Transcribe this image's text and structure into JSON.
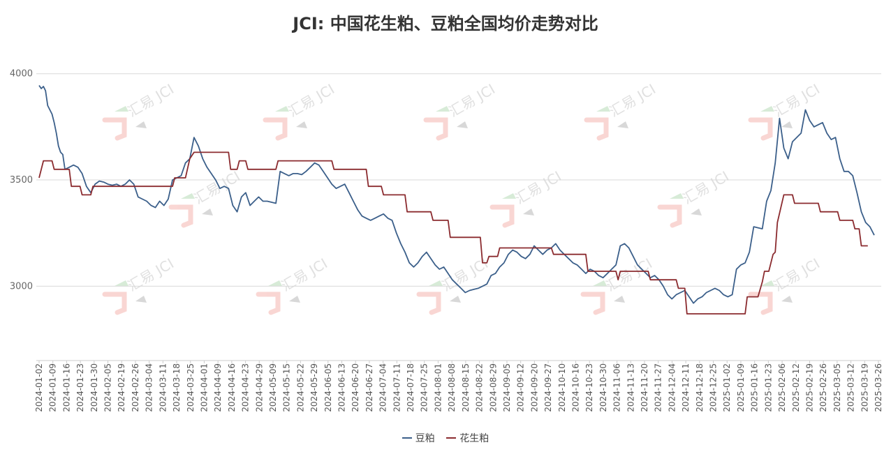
{
  "chart_data": {
    "type": "line",
    "title": "JCI: 中国花生粕、豆粕全国均价走势对比",
    "xlabel": "",
    "ylabel": "",
    "ylim": [
      2650,
      4150
    ],
    "yticks": [
      3000,
      3500,
      4000
    ],
    "grid": true,
    "legend_position": "bottom-center",
    "watermark": "汇易 JCI",
    "x_tick_labels": [
      "2024-01-02",
      "2024-01-09",
      "2024-01-16",
      "2024-01-23",
      "2024-01-30",
      "2024-02-05",
      "2024-02-19",
      "2024-02-26",
      "2024-03-04",
      "2024-03-11",
      "2024-03-18",
      "2024-03-25",
      "2024-04-01",
      "2024-04-09",
      "2024-04-16",
      "2024-04-23",
      "2024-04-29",
      "2024-05-09",
      "2024-05-15",
      "2024-05-22",
      "2024-05-29",
      "2024-06-05",
      "2024-06-13",
      "2024-06-20",
      "2024-06-27",
      "2024-07-04",
      "2024-07-11",
      "2024-07-18",
      "2024-07-25",
      "2024-08-01",
      "2024-08-08",
      "2024-08-15",
      "2024-08-22",
      "2024-08-29",
      "2024-09-05",
      "2024-09-12",
      "2024-09-20",
      "2024-09-27",
      "2024-10-10",
      "2024-10-16",
      "2024-10-23",
      "2024-10-30",
      "2024-11-06",
      "2024-11-13",
      "2024-11-20",
      "2024-11-27",
      "2024-12-04",
      "2024-12-11",
      "2024-12-18",
      "2024-12-25",
      "2025-01-02",
      "2025-01-09",
      "2025-01-16",
      "2025-01-23",
      "2025-02-06",
      "2025-02-12",
      "2025-02-19",
      "2025-02-26",
      "2025-03-05",
      "2025-03-12",
      "2025-03-19",
      "2025-03-26"
    ],
    "series": [
      {
        "name": "豆粕",
        "color": "#3b5f8a",
        "points": [
          [
            0,
            3945
          ],
          [
            1,
            3930
          ],
          [
            2,
            3940
          ],
          [
            3,
            3920
          ],
          [
            4,
            3850
          ],
          [
            5,
            3830
          ],
          [
            6,
            3810
          ],
          [
            7,
            3770
          ],
          [
            8,
            3720
          ],
          [
            9,
            3660
          ],
          [
            10,
            3630
          ],
          [
            11,
            3620
          ],
          [
            12,
            3550
          ],
          [
            14,
            3560
          ],
          [
            16,
            3570
          ],
          [
            18,
            3560
          ],
          [
            20,
            3530
          ],
          [
            22,
            3470
          ],
          [
            24,
            3440
          ],
          [
            26,
            3480
          ],
          [
            28,
            3495
          ],
          [
            30,
            3490
          ],
          [
            32,
            3480
          ],
          [
            34,
            3475
          ],
          [
            36,
            3480
          ],
          [
            38,
            3470
          ],
          [
            40,
            3480
          ],
          [
            42,
            3500
          ],
          [
            44,
            3480
          ],
          [
            46,
            3420
          ],
          [
            48,
            3410
          ],
          [
            50,
            3400
          ],
          [
            52,
            3380
          ],
          [
            54,
            3370
          ],
          [
            56,
            3400
          ],
          [
            58,
            3380
          ],
          [
            60,
            3410
          ],
          [
            62,
            3500
          ],
          [
            64,
            3510
          ],
          [
            66,
            3520
          ],
          [
            68,
            3580
          ],
          [
            70,
            3600
          ],
          [
            72,
            3700
          ],
          [
            74,
            3660
          ],
          [
            76,
            3600
          ],
          [
            78,
            3560
          ],
          [
            80,
            3530
          ],
          [
            82,
            3500
          ],
          [
            84,
            3460
          ],
          [
            86,
            3470
          ],
          [
            88,
            3460
          ],
          [
            90,
            3380
          ],
          [
            92,
            3350
          ],
          [
            94,
            3420
          ],
          [
            96,
            3440
          ],
          [
            98,
            3380
          ],
          [
            100,
            3400
          ],
          [
            102,
            3420
          ],
          [
            104,
            3400
          ],
          [
            106,
            3400
          ],
          [
            108,
            3395
          ],
          [
            110,
            3390
          ],
          [
            112,
            3540
          ],
          [
            114,
            3530
          ],
          [
            116,
            3520
          ],
          [
            118,
            3530
          ],
          [
            120,
            3530
          ],
          [
            122,
            3525
          ],
          [
            124,
            3540
          ],
          [
            126,
            3560
          ],
          [
            128,
            3580
          ],
          [
            130,
            3570
          ],
          [
            132,
            3540
          ],
          [
            134,
            3510
          ],
          [
            136,
            3480
          ],
          [
            138,
            3460
          ],
          [
            140,
            3470
          ],
          [
            142,
            3480
          ],
          [
            144,
            3440
          ],
          [
            146,
            3400
          ],
          [
            148,
            3360
          ],
          [
            150,
            3330
          ],
          [
            152,
            3320
          ],
          [
            154,
            3310
          ],
          [
            156,
            3320
          ],
          [
            158,
            3330
          ],
          [
            160,
            3340
          ],
          [
            162,
            3320
          ],
          [
            164,
            3310
          ],
          [
            166,
            3250
          ],
          [
            168,
            3200
          ],
          [
            170,
            3160
          ],
          [
            172,
            3110
          ],
          [
            174,
            3090
          ],
          [
            176,
            3110
          ],
          [
            178,
            3140
          ],
          [
            180,
            3160
          ],
          [
            182,
            3130
          ],
          [
            184,
            3100
          ],
          [
            186,
            3080
          ],
          [
            188,
            3090
          ],
          [
            190,
            3060
          ],
          [
            192,
            3030
          ],
          [
            194,
            3010
          ],
          [
            196,
            2990
          ],
          [
            198,
            2970
          ],
          [
            200,
            2980
          ],
          [
            202,
            2985
          ],
          [
            204,
            2990
          ],
          [
            206,
            3000
          ],
          [
            208,
            3010
          ],
          [
            210,
            3050
          ],
          [
            212,
            3060
          ],
          [
            214,
            3090
          ],
          [
            216,
            3110
          ],
          [
            218,
            3150
          ],
          [
            220,
            3170
          ],
          [
            222,
            3160
          ],
          [
            224,
            3140
          ],
          [
            226,
            3130
          ],
          [
            228,
            3150
          ],
          [
            230,
            3190
          ],
          [
            232,
            3170
          ],
          [
            234,
            3150
          ],
          [
            236,
            3170
          ],
          [
            238,
            3180
          ],
          [
            240,
            3200
          ],
          [
            242,
            3170
          ],
          [
            244,
            3150
          ],
          [
            246,
            3130
          ],
          [
            248,
            3110
          ],
          [
            250,
            3100
          ],
          [
            252,
            3080
          ],
          [
            254,
            3060
          ],
          [
            256,
            3080
          ],
          [
            258,
            3070
          ],
          [
            260,
            3050
          ],
          [
            262,
            3040
          ],
          [
            264,
            3060
          ],
          [
            266,
            3080
          ],
          [
            268,
            3100
          ],
          [
            270,
            3190
          ],
          [
            272,
            3200
          ],
          [
            274,
            3180
          ],
          [
            276,
            3140
          ],
          [
            278,
            3100
          ],
          [
            280,
            3080
          ],
          [
            282,
            3060
          ],
          [
            284,
            3040
          ],
          [
            286,
            3050
          ],
          [
            288,
            3030
          ],
          [
            290,
            3000
          ],
          [
            292,
            2960
          ],
          [
            294,
            2940
          ],
          [
            296,
            2960
          ],
          [
            298,
            2970
          ],
          [
            300,
            2980
          ],
          [
            302,
            2950
          ],
          [
            304,
            2920
          ],
          [
            306,
            2940
          ],
          [
            308,
            2950
          ],
          [
            310,
            2970
          ],
          [
            312,
            2980
          ],
          [
            314,
            2990
          ],
          [
            316,
            2980
          ],
          [
            318,
            2960
          ],
          [
            320,
            2950
          ],
          [
            322,
            2960
          ],
          [
            324,
            3080
          ],
          [
            326,
            3100
          ],
          [
            328,
            3110
          ],
          [
            330,
            3160
          ],
          [
            332,
            3280
          ],
          [
            334,
            3275
          ],
          [
            336,
            3270
          ],
          [
            338,
            3400
          ],
          [
            340,
            3450
          ],
          [
            342,
            3580
          ],
          [
            344,
            3790
          ],
          [
            346,
            3650
          ],
          [
            348,
            3600
          ],
          [
            350,
            3680
          ],
          [
            352,
            3700
          ],
          [
            354,
            3720
          ],
          [
            356,
            3830
          ],
          [
            358,
            3780
          ],
          [
            360,
            3750
          ],
          [
            362,
            3760
          ],
          [
            364,
            3770
          ],
          [
            366,
            3720
          ],
          [
            368,
            3690
          ],
          [
            370,
            3700
          ],
          [
            372,
            3600
          ],
          [
            374,
            3540
          ],
          [
            376,
            3540
          ],
          [
            378,
            3520
          ],
          [
            380,
            3440
          ],
          [
            382,
            3350
          ],
          [
            384,
            3300
          ],
          [
            386,
            3280
          ],
          [
            388,
            3240
          ]
        ]
      },
      {
        "name": "花生粕",
        "color": "#8b2b2f",
        "points": [
          [
            0,
            3510
          ],
          [
            2,
            3590
          ],
          [
            6,
            3590
          ],
          [
            7,
            3550
          ],
          [
            14,
            3550
          ],
          [
            15,
            3470
          ],
          [
            19,
            3470
          ],
          [
            20,
            3430
          ],
          [
            24,
            3430
          ],
          [
            25,
            3470
          ],
          [
            62,
            3470
          ],
          [
            63,
            3510
          ],
          [
            68,
            3510
          ],
          [
            70,
            3600
          ],
          [
            72,
            3630
          ],
          [
            88,
            3630
          ],
          [
            89,
            3550
          ],
          [
            92,
            3550
          ],
          [
            93,
            3590
          ],
          [
            96,
            3590
          ],
          [
            97,
            3550
          ],
          [
            110,
            3550
          ],
          [
            111,
            3590
          ],
          [
            136,
            3590
          ],
          [
            137,
            3550
          ],
          [
            152,
            3550
          ],
          [
            153,
            3470
          ],
          [
            159,
            3470
          ],
          [
            160,
            3430
          ],
          [
            170,
            3430
          ],
          [
            171,
            3350
          ],
          [
            182,
            3350
          ],
          [
            183,
            3310
          ],
          [
            190,
            3310
          ],
          [
            191,
            3230
          ],
          [
            205,
            3230
          ],
          [
            206,
            3110
          ],
          [
            208,
            3110
          ],
          [
            209,
            3140
          ],
          [
            213,
            3140
          ],
          [
            214,
            3180
          ],
          [
            238,
            3180
          ],
          [
            239,
            3150
          ],
          [
            254,
            3150
          ],
          [
            255,
            3070
          ],
          [
            268,
            3070
          ],
          [
            269,
            3030
          ],
          [
            270,
            3070
          ],
          [
            283,
            3070
          ],
          [
            284,
            3030
          ],
          [
            296,
            3030
          ],
          [
            297,
            2990
          ],
          [
            300,
            2990
          ],
          [
            301,
            2870
          ],
          [
            328,
            2870
          ],
          [
            329,
            2950
          ],
          [
            334,
            2950
          ],
          [
            336,
            3020
          ],
          [
            337,
            3070
          ],
          [
            339,
            3070
          ],
          [
            341,
            3150
          ],
          [
            342,
            3160
          ],
          [
            343,
            3300
          ],
          [
            346,
            3430
          ],
          [
            350,
            3430
          ],
          [
            351,
            3390
          ],
          [
            362,
            3390
          ],
          [
            363,
            3350
          ],
          [
            371,
            3350
          ],
          [
            372,
            3310
          ],
          [
            378,
            3310
          ],
          [
            379,
            3270
          ],
          [
            381,
            3270
          ],
          [
            382,
            3190
          ],
          [
            385,
            3190
          ]
        ]
      }
    ]
  }
}
